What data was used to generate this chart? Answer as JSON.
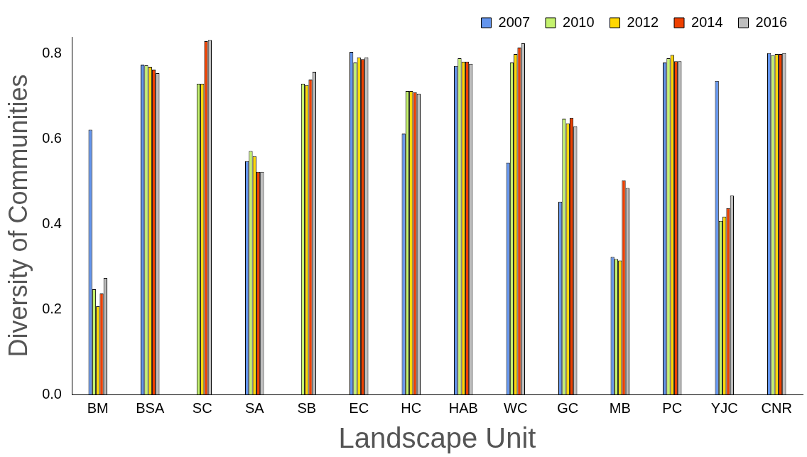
{
  "chart_data": {
    "type": "bar",
    "xlabel": "Landscape Unit",
    "ylabel": "Diversity of Communities",
    "categories": [
      "BM",
      "BSA",
      "SC",
      "SA",
      "SB",
      "EC",
      "HC",
      "HAB",
      "WC",
      "GC",
      "MB",
      "PC",
      "YJC",
      "CNR"
    ],
    "series": [
      {
        "name": "2007",
        "color": "#6495ed",
        "values": [
          0.622,
          0.775,
          null,
          0.548,
          null,
          0.805,
          0.613,
          0.772,
          0.545,
          0.453,
          0.323,
          0.78,
          0.737,
          0.802
        ]
      },
      {
        "name": "2010",
        "color": "#c4f26e",
        "values": [
          0.247,
          0.773,
          0.73,
          0.572,
          0.73,
          0.78,
          0.713,
          0.79,
          0.78,
          0.648,
          0.318,
          0.79,
          0.408,
          0.797
        ]
      },
      {
        "name": "2012",
        "color": "#ffd700",
        "values": [
          0.207,
          0.77,
          0.73,
          0.56,
          0.727,
          0.792,
          0.713,
          0.782,
          0.8,
          0.637,
          0.315,
          0.798,
          0.418,
          0.8
        ]
      },
      {
        "name": "2014",
        "color": "#ee4000",
        "values": [
          0.237,
          0.763,
          0.83,
          0.523,
          0.74,
          0.788,
          0.71,
          0.782,
          0.815,
          0.65,
          0.503,
          0.783,
          0.438,
          0.8
        ]
      },
      {
        "name": "2016",
        "color": "#bebebe",
        "values": [
          0.274,
          0.755,
          0.833,
          0.523,
          0.758,
          0.792,
          0.707,
          0.777,
          0.825,
          0.63,
          0.485,
          0.783,
          0.467,
          0.802
        ]
      }
    ],
    "ylim": [
      0,
      0.84
    ],
    "yticks": [
      {
        "value": 0,
        "label": "0.0"
      },
      {
        "value": 0.2,
        "label": "0.2"
      },
      {
        "value": 0.4,
        "label": "0.4"
      },
      {
        "value": 0.6,
        "label": "0.6"
      },
      {
        "value": 0.8,
        "label": "0.8"
      }
    ],
    "grid": false,
    "legend": "top right"
  }
}
